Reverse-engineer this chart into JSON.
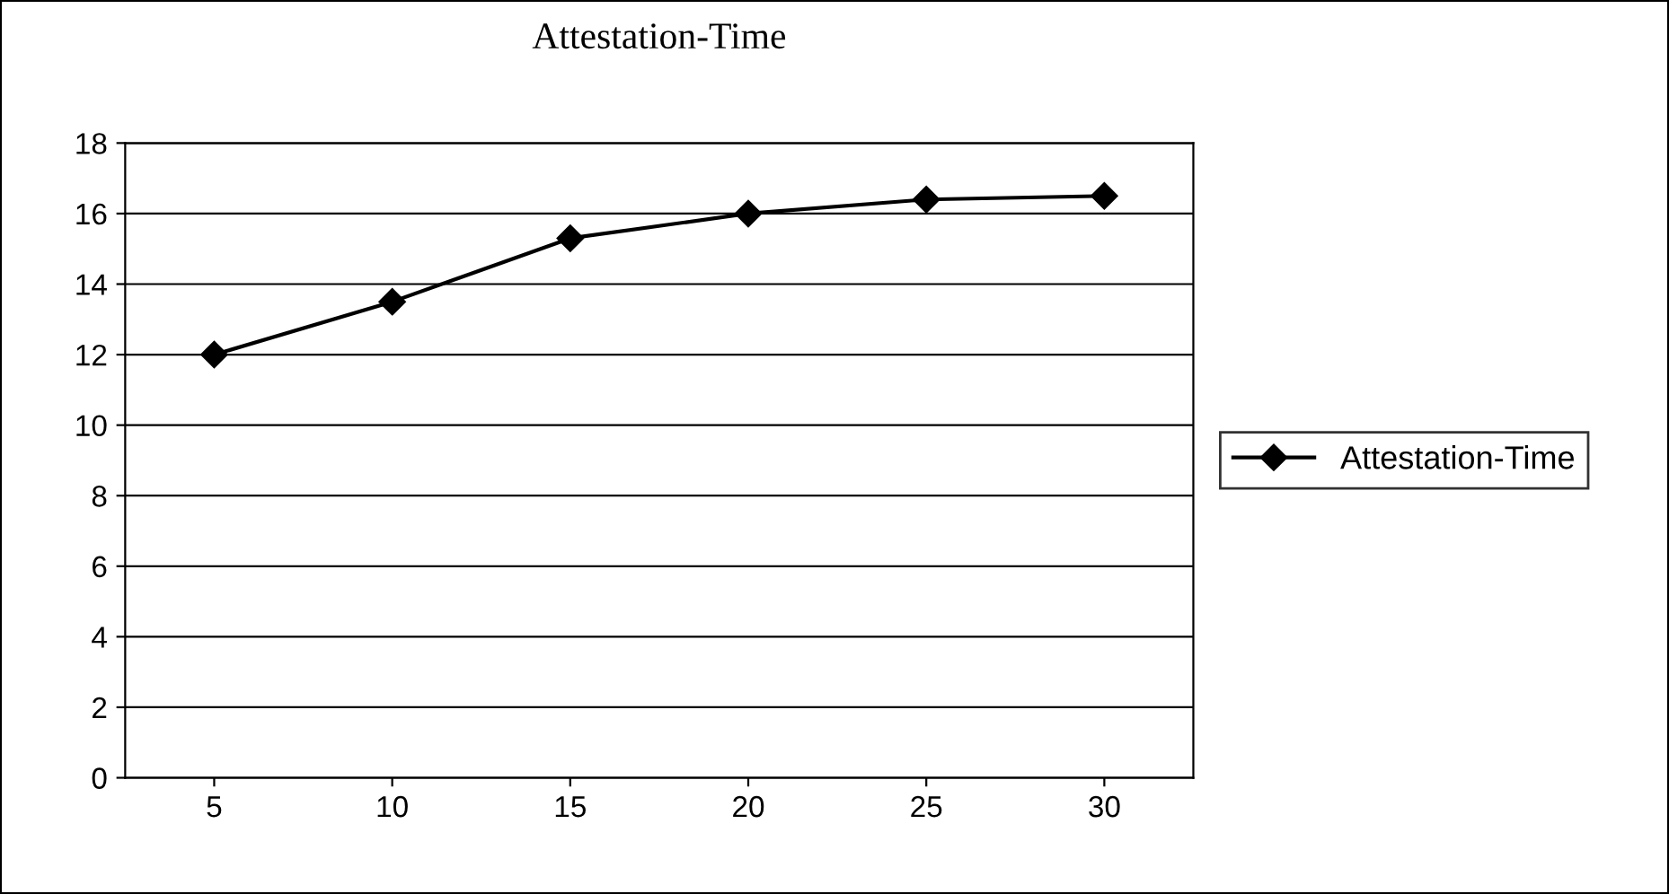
{
  "chart_data": {
    "type": "line",
    "title": "Attestation-Time",
    "categories": [
      "5",
      "10",
      "15",
      "20",
      "25",
      "30"
    ],
    "series": [
      {
        "name": "Attestation-Time",
        "color": "#000000",
        "values": [
          12,
          13.5,
          15.3,
          16,
          16.4,
          16.5
        ]
      }
    ],
    "ylim": [
      0,
      18
    ],
    "yticks": [
      0,
      2,
      4,
      6,
      8,
      10,
      12,
      14,
      16,
      18
    ],
    "grid": "y",
    "legend": "right",
    "marker": "diamond",
    "line_style": "solid"
  }
}
